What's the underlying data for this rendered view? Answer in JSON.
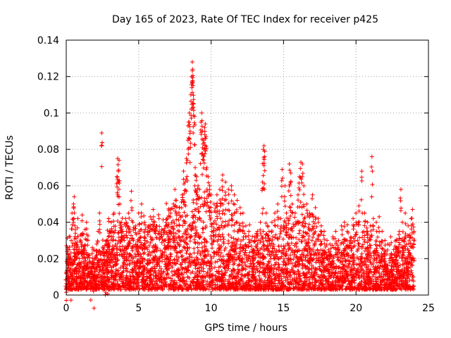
{
  "chart_data": {
    "type": "scatter",
    "title": "Day 165 of 2023, Rate Of TEC Index for receiver p425",
    "xlabel": "GPS time / hours",
    "ylabel": "ROTI / TECUs",
    "xlim": [
      0,
      25
    ],
    "ylim": [
      0,
      0.14
    ],
    "xticks": [
      0,
      5,
      10,
      15,
      20,
      25
    ],
    "xtick_labels": [
      "0",
      "5",
      "10",
      "15",
      "20",
      "25"
    ],
    "yticks": [
      0,
      0.02,
      0.04,
      0.06,
      0.08,
      0.1,
      0.12,
      0.14
    ],
    "ytick_labels": [
      "0",
      "0.02",
      "0.04",
      "0.06",
      "0.08",
      "0.1",
      "0.12",
      "0.14"
    ],
    "grid": true,
    "marker": "plus",
    "color": "#ff0000",
    "series": [
      {
        "points": [
          [
            0.0,
            0.012
          ],
          [
            0.1,
            0.025
          ],
          [
            0.2,
            0.032
          ],
          [
            0.3,
            0.018
          ],
          [
            0.4,
            0.045
          ],
          [
            0.5,
            0.05
          ],
          [
            0.55,
            0.054
          ],
          [
            0.6,
            0.038
          ],
          [
            0.7,
            0.028
          ],
          [
            0.8,
            0.042
          ],
          [
            0.9,
            0.02
          ],
          [
            1.0,
            0.033
          ],
          [
            1.1,
            0.044
          ],
          [
            1.2,
            0.025
          ],
          [
            1.3,
            0.036
          ],
          [
            1.4,
            0.04
          ],
          [
            1.5,
            0.03
          ],
          [
            1.6,
            0.022
          ],
          [
            1.7,
            0.018
          ],
          [
            1.8,
            0.026
          ],
          [
            1.9,
            0.015
          ],
          [
            2.0,
            0.02
          ],
          [
            2.1,
            0.028
          ],
          [
            2.2,
            0.035
          ],
          [
            2.3,
            0.045
          ],
          [
            2.45,
            0.089
          ],
          [
            2.6,
            0.025
          ],
          [
            2.7,
            0.018
          ],
          [
            2.8,
            0.03
          ],
          [
            2.9,
            0.022
          ],
          [
            3.0,
            0.035
          ],
          [
            3.1,
            0.04
          ],
          [
            3.2,
            0.03
          ],
          [
            3.3,
            0.045
          ],
          [
            3.5,
            0.065
          ],
          [
            3.55,
            0.075
          ],
          [
            3.6,
            0.068
          ],
          [
            3.65,
            0.074
          ],
          [
            3.7,
            0.05
          ],
          [
            3.8,
            0.04
          ],
          [
            3.9,
            0.035
          ],
          [
            4.0,
            0.03
          ],
          [
            4.1,
            0.042
          ],
          [
            4.2,
            0.038
          ],
          [
            4.3,
            0.045
          ],
          [
            4.4,
            0.035
          ],
          [
            4.5,
            0.057
          ],
          [
            4.6,
            0.04
          ],
          [
            4.8,
            0.038
          ],
          [
            5.0,
            0.045
          ],
          [
            5.2,
            0.05
          ],
          [
            5.4,
            0.04
          ],
          [
            5.6,
            0.035
          ],
          [
            5.8,
            0.043
          ],
          [
            6.0,
            0.047
          ],
          [
            6.2,
            0.038
          ],
          [
            6.4,
            0.042
          ],
          [
            6.6,
            0.036
          ],
          [
            6.8,
            0.03
          ],
          [
            7.0,
            0.038
          ],
          [
            7.2,
            0.045
          ],
          [
            7.4,
            0.05
          ],
          [
            7.5,
            0.058
          ],
          [
            7.6,
            0.052
          ],
          [
            7.8,
            0.048
          ],
          [
            8.0,
            0.055
          ],
          [
            8.1,
            0.068
          ],
          [
            8.2,
            0.062
          ],
          [
            8.3,
            0.075
          ],
          [
            8.4,
            0.085
          ],
          [
            8.45,
            0.095
          ],
          [
            8.5,
            0.1
          ],
          [
            8.55,
            0.09
          ],
          [
            8.6,
            0.11
          ],
          [
            8.65,
            0.12
          ],
          [
            8.7,
            0.128
          ],
          [
            8.72,
            0.124
          ],
          [
            8.75,
            0.115
          ],
          [
            8.8,
            0.105
          ],
          [
            8.85,
            0.098
          ],
          [
            8.9,
            0.07
          ],
          [
            9.0,
            0.065
          ],
          [
            9.1,
            0.06
          ],
          [
            9.2,
            0.058
          ],
          [
            9.3,
            0.095
          ],
          [
            9.35,
            0.1
          ],
          [
            9.4,
            0.09
          ],
          [
            9.45,
            0.085
          ],
          [
            9.5,
            0.08
          ],
          [
            9.55,
            0.092
          ],
          [
            9.6,
            0.094
          ],
          [
            9.65,
            0.087
          ],
          [
            9.7,
            0.07
          ],
          [
            9.8,
            0.065
          ],
          [
            9.9,
            0.06
          ],
          [
            10.0,
            0.055
          ],
          [
            10.2,
            0.05
          ],
          [
            10.4,
            0.055
          ],
          [
            10.6,
            0.058
          ],
          [
            10.8,
            0.066
          ],
          [
            11.0,
            0.062
          ],
          [
            11.2,
            0.058
          ],
          [
            11.4,
            0.06
          ],
          [
            11.6,
            0.055
          ],
          [
            11.8,
            0.052
          ],
          [
            12.0,
            0.048
          ],
          [
            12.2,
            0.045
          ],
          [
            12.4,
            0.038
          ],
          [
            12.6,
            0.035
          ],
          [
            12.8,
            0.03
          ],
          [
            13.0,
            0.032
          ],
          [
            13.2,
            0.035
          ],
          [
            13.4,
            0.04
          ],
          [
            13.55,
            0.062
          ],
          [
            13.6,
            0.08
          ],
          [
            13.65,
            0.082
          ],
          [
            13.7,
            0.079
          ],
          [
            13.8,
            0.045
          ],
          [
            13.9,
            0.038
          ],
          [
            14.0,
            0.035
          ],
          [
            14.2,
            0.04
          ],
          [
            14.4,
            0.045
          ],
          [
            14.6,
            0.05
          ],
          [
            14.8,
            0.042
          ],
          [
            14.9,
            0.069
          ],
          [
            15.0,
            0.038
          ],
          [
            15.1,
            0.06
          ],
          [
            15.2,
            0.045
          ],
          [
            15.4,
            0.072
          ],
          [
            15.5,
            0.067
          ],
          [
            15.6,
            0.05
          ],
          [
            15.8,
            0.045
          ],
          [
            16.0,
            0.055
          ],
          [
            16.1,
            0.065
          ],
          [
            16.2,
            0.073
          ],
          [
            16.3,
            0.072
          ],
          [
            16.4,
            0.06
          ],
          [
            16.6,
            0.05
          ],
          [
            16.8,
            0.045
          ],
          [
            17.0,
            0.055
          ],
          [
            17.2,
            0.048
          ],
          [
            17.4,
            0.042
          ],
          [
            17.6,
            0.038
          ],
          [
            17.8,
            0.035
          ],
          [
            18.0,
            0.03
          ],
          [
            18.2,
            0.028
          ],
          [
            18.4,
            0.032
          ],
          [
            18.6,
            0.035
          ],
          [
            18.8,
            0.03
          ],
          [
            19.0,
            0.038
          ],
          [
            19.2,
            0.04
          ],
          [
            19.4,
            0.035
          ],
          [
            19.6,
            0.03
          ],
          [
            19.8,
            0.042
          ],
          [
            20.0,
            0.045
          ],
          [
            20.2,
            0.049
          ],
          [
            20.4,
            0.068
          ],
          [
            20.6,
            0.045
          ],
          [
            20.8,
            0.04
          ],
          [
            21.0,
            0.038
          ],
          [
            21.1,
            0.076
          ],
          [
            21.2,
            0.042
          ],
          [
            21.4,
            0.04
          ],
          [
            21.6,
            0.043
          ],
          [
            21.8,
            0.035
          ],
          [
            22.0,
            0.03
          ],
          [
            22.2,
            0.028
          ],
          [
            22.4,
            0.032
          ],
          [
            22.6,
            0.025
          ],
          [
            22.8,
            0.03
          ],
          [
            23.0,
            0.035
          ],
          [
            23.1,
            0.058
          ],
          [
            23.2,
            0.04
          ],
          [
            23.4,
            0.045
          ],
          [
            23.6,
            0.038
          ],
          [
            23.8,
            0.042
          ],
          [
            23.9,
            0.047
          ],
          [
            24.0,
            0.035
          ]
        ]
      }
    ],
    "dense_band": {
      "x_range": [
        0,
        24
      ],
      "y_floor": 0.003,
      "y_ceiling_profile": [
        [
          0,
          0.03
        ],
        [
          1,
          0.035
        ],
        [
          2,
          0.022
        ],
        [
          2.5,
          0.03
        ],
        [
          3,
          0.04
        ],
        [
          4,
          0.038
        ],
        [
          5,
          0.04
        ],
        [
          6,
          0.038
        ],
        [
          7,
          0.045
        ],
        [
          8,
          0.05
        ],
        [
          9,
          0.055
        ],
        [
          10,
          0.052
        ],
        [
          11,
          0.048
        ],
        [
          12,
          0.04
        ],
        [
          13,
          0.032
        ],
        [
          14,
          0.035
        ],
        [
          15,
          0.04
        ],
        [
          16,
          0.045
        ],
        [
          17,
          0.04
        ],
        [
          18,
          0.028
        ],
        [
          19,
          0.032
        ],
        [
          20,
          0.038
        ],
        [
          21,
          0.035
        ],
        [
          22,
          0.025
        ],
        [
          23,
          0.032
        ],
        [
          24,
          0.035
        ]
      ]
    }
  }
}
